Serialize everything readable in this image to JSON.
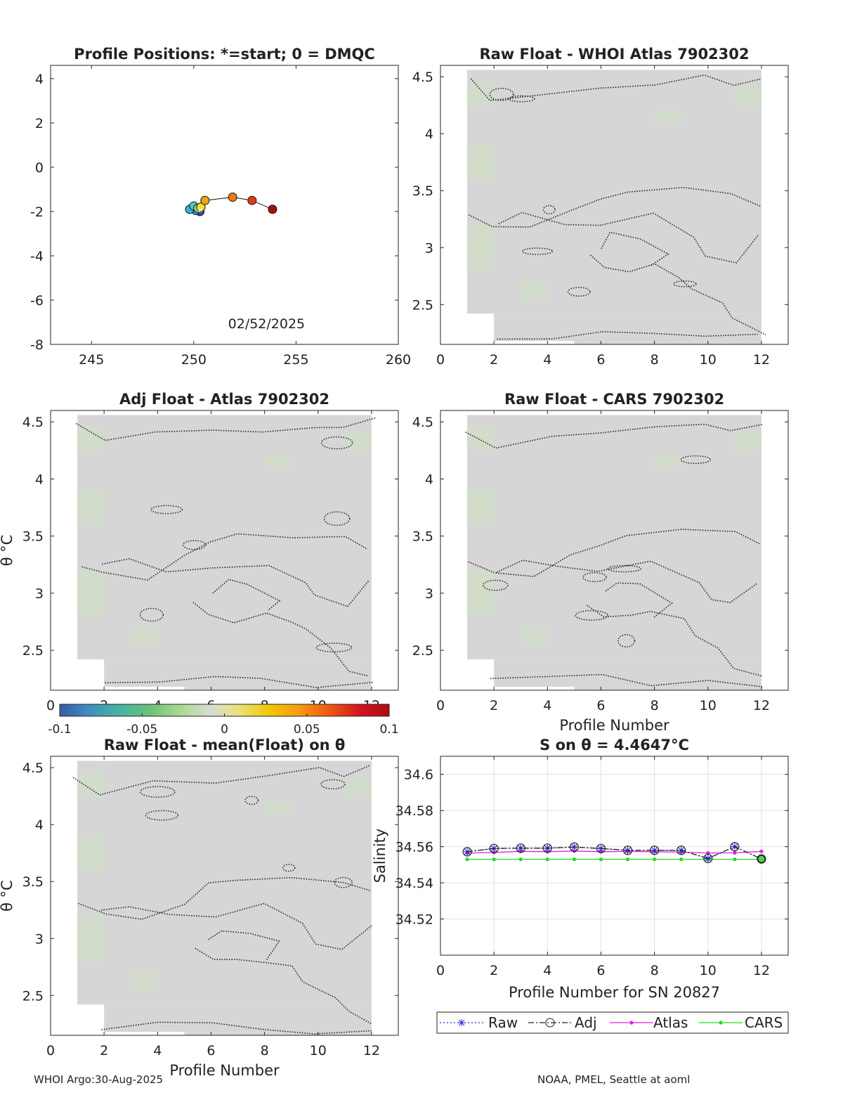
{
  "footer": {
    "left": "WHOI Argo:30-Aug-2025",
    "right": "NOAA, PMEL, Seattle at aoml"
  },
  "colorbar": {
    "ticks": [
      "-0.1",
      "-0.05",
      "0",
      "0.05",
      "0.1"
    ],
    "range": [
      -0.1,
      0.1
    ],
    "colors": [
      "#3b5aa6",
      "#3f8fbf",
      "#47b3a0",
      "#6cc07a",
      "#a9d88e",
      "#d8dcd4",
      "#e9e27a",
      "#f2c800",
      "#f59a10",
      "#ee5a14",
      "#d2161d",
      "#b00a10"
    ]
  },
  "chart_data": [
    {
      "type": "scatter",
      "id": "positions",
      "title": "Profile Positions: *=start; 0 = DMQC",
      "xlim": [
        243,
        260
      ],
      "ylim": [
        -8,
        4.6
      ],
      "xticks": [
        "245",
        "250",
        "255",
        "260"
      ],
      "yticks": [
        "4",
        "2",
        "0",
        "-2",
        "-4",
        "-6",
        "-8"
      ],
      "annotation": "02/52/2025",
      "points": [
        {
          "lon": 250.3,
          "lat": -2.0,
          "color": "#2a4fa8"
        },
        {
          "lon": 250.1,
          "lat": -1.95,
          "color": "#3f8fdc"
        },
        {
          "lon": 249.8,
          "lat": -1.9,
          "color": "#2fb6d8"
        },
        {
          "lon": 250.0,
          "lat": -1.75,
          "color": "#55c8c0"
        },
        {
          "lon": 250.2,
          "lat": -1.85,
          "color": "#9fd86a"
        },
        {
          "lon": 250.35,
          "lat": -1.8,
          "color": "#f0e030"
        },
        {
          "lon": 250.55,
          "lat": -1.5,
          "color": "#f2a413"
        },
        {
          "lon": 251.9,
          "lat": -1.35,
          "color": "#f07818"
        },
        {
          "lon": 252.85,
          "lat": -1.5,
          "color": "#e03a14"
        },
        {
          "lon": 253.85,
          "lat": -1.9,
          "color": "#a80f0f"
        }
      ]
    },
    {
      "type": "heatmap",
      "id": "raw-whoi",
      "title": "Raw Float - WHOI Atlas  7902302",
      "xlim": [
        0,
        13
      ],
      "ylim": [
        2.15,
        4.6
      ],
      "xticks": [
        "0",
        "2",
        "4",
        "6",
        "8",
        "10",
        "12"
      ],
      "yticks": [
        "4.5",
        "4",
        "3.5",
        "3",
        "2.5"
      ],
      "xlabel": "",
      "ylabel": ""
    },
    {
      "type": "heatmap",
      "id": "adj-atlas",
      "title": "Adj Float - Atlas  7902302",
      "xlim": [
        0,
        13
      ],
      "ylim": [
        2.15,
        4.6
      ],
      "xticks": [
        "0",
        "2",
        "4",
        "6",
        "8",
        "10",
        "12"
      ],
      "yticks": [
        "4.5",
        "4",
        "3.5",
        "3",
        "2.5"
      ],
      "xlabel": "",
      "ylabel": "θ °C"
    },
    {
      "type": "heatmap",
      "id": "raw-cars",
      "title": "Raw Float - CARS  7902302",
      "xlim": [
        0,
        13
      ],
      "ylim": [
        2.15,
        4.6
      ],
      "xticks": [
        "0",
        "2",
        "4",
        "6",
        "8",
        "10",
        "12"
      ],
      "yticks": [
        "4.5",
        "4",
        "3.5",
        "3",
        "2.5"
      ],
      "xlabel": "Profile Number",
      "ylabel": ""
    },
    {
      "type": "heatmap",
      "id": "raw-mean",
      "title": "Raw Float - mean(Float) on θ",
      "xlim": [
        0,
        13
      ],
      "ylim": [
        2.15,
        4.6
      ],
      "xticks": [
        "0",
        "2",
        "4",
        "6",
        "8",
        "10",
        "12"
      ],
      "yticks": [
        "4.5",
        "4",
        "3.5",
        "3",
        "2.5"
      ],
      "xlabel": "Profile Number",
      "ylabel": "θ °C"
    },
    {
      "type": "line",
      "id": "salinity",
      "title": "S on θ = 4.4647°C",
      "xlabel": "Profile Number for SN 20827",
      "ylabel": "Salinity",
      "xlim": [
        0,
        13
      ],
      "ylim": [
        34.5,
        34.61
      ],
      "xticks": [
        "0",
        "2",
        "4",
        "6",
        "8",
        "10",
        "12"
      ],
      "yticks": [
        "34.6",
        "34.58",
        "34.56",
        "34.54",
        "34.52"
      ],
      "grid": true,
      "x": [
        1,
        2,
        3,
        4,
        5,
        6,
        7,
        8,
        9,
        10,
        11,
        12
      ],
      "series": [
        {
          "name": "Raw",
          "color": "#2b2bd6",
          "values": [
            34.5572,
            34.559,
            34.5592,
            34.5592,
            34.5598,
            34.559,
            34.558,
            34.558,
            34.558,
            34.5535,
            34.56,
            34.5532
          ]
        },
        {
          "name": "Adj",
          "color": "#222222",
          "values": [
            34.5572,
            34.559,
            34.5592,
            34.5592,
            34.5598,
            34.559,
            34.558,
            34.558,
            34.558,
            34.5535,
            34.56,
            34.5532
          ]
        },
        {
          "name": "Atlas",
          "color": "#e020e0",
          "values": [
            34.5565,
            34.5568,
            34.5574,
            34.5572,
            34.5576,
            34.5572,
            34.5574,
            34.5572,
            34.557,
            34.5565,
            34.5566,
            34.5574
          ]
        },
        {
          "name": "CARS",
          "color": "#22dd22",
          "values": [
            34.553,
            34.553,
            34.553,
            34.553,
            34.553,
            34.553,
            34.553,
            34.553,
            34.553,
            34.553,
            34.553,
            34.553
          ]
        }
      ]
    }
  ]
}
